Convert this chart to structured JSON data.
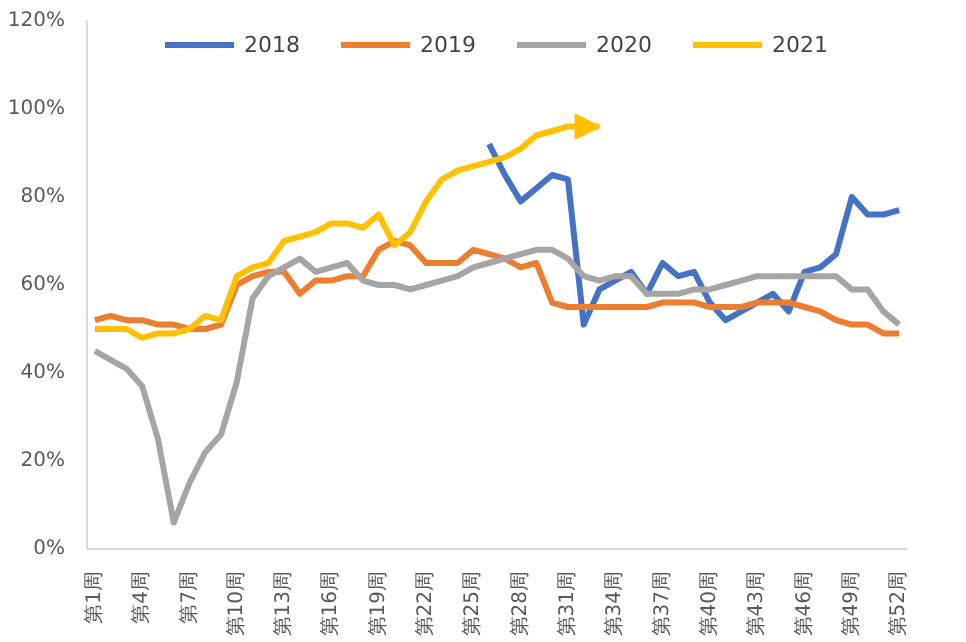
{
  "chart_data": {
    "type": "line",
    "categories": [
      "第1周",
      null,
      null,
      "第4周",
      null,
      null,
      "第7周",
      null,
      null,
      "第10周",
      null,
      null,
      "第13周",
      null,
      null,
      "第16周",
      null,
      null,
      "第19周",
      null,
      null,
      "第22周",
      null,
      null,
      "第25周",
      null,
      null,
      "第28周",
      null,
      null,
      "第31周",
      null,
      null,
      "第34周",
      null,
      null,
      "第37周",
      null,
      null,
      "第40周",
      null,
      null,
      "第43周",
      null,
      null,
      "第46周",
      null,
      null,
      "第49周",
      null,
      null,
      "第52周"
    ],
    "series": [
      {
        "name": "2018",
        "color": "#4472c4",
        "values": [
          null,
          null,
          null,
          null,
          null,
          null,
          null,
          null,
          null,
          null,
          null,
          null,
          null,
          null,
          null,
          null,
          null,
          null,
          null,
          null,
          null,
          null,
          null,
          null,
          null,
          92,
          85,
          79,
          82,
          85,
          84,
          51,
          59,
          61,
          63,
          58,
          65,
          62,
          63,
          56,
          52,
          54,
          56,
          58,
          54,
          63,
          64,
          67,
          80,
          76,
          76,
          77
        ]
      },
      {
        "name": "2019",
        "color": "#ed7d31",
        "values": [
          52,
          53,
          52,
          52,
          51,
          51,
          50,
          50,
          51,
          60,
          62,
          63,
          63,
          58,
          61,
          61,
          62,
          62,
          68,
          70,
          69,
          65,
          65,
          65,
          68,
          67,
          66,
          64,
          65,
          56,
          55,
          55,
          55,
          55,
          55,
          55,
          56,
          56,
          56,
          55,
          55,
          55,
          56,
          56,
          56,
          55,
          54,
          52,
          51,
          51,
          49,
          49
        ]
      },
      {
        "name": "2020",
        "color": "#a5a5a5",
        "values": [
          45,
          43,
          41,
          37,
          25,
          6,
          15,
          22,
          26,
          38,
          57,
          62,
          64,
          66,
          63,
          64,
          65,
          61,
          60,
          60,
          59,
          60,
          61,
          62,
          64,
          65,
          66,
          67,
          68,
          68,
          66,
          62,
          61,
          62,
          62,
          58,
          58,
          58,
          59,
          59,
          60,
          61,
          62,
          62,
          62,
          62,
          62,
          62,
          59,
          59,
          54,
          51
        ]
      },
      {
        "name": "2021",
        "color": "#ffc000",
        "values": [
          50,
          50,
          50,
          48,
          49,
          49,
          50,
          53,
          52,
          62,
          64,
          65,
          70,
          71,
          72,
          74,
          74,
          73,
          76,
          69,
          72,
          79,
          84,
          86,
          87,
          88,
          89,
          91,
          94,
          95,
          96,
          96,
          96,
          null,
          null,
          null,
          null,
          null,
          null,
          null,
          null,
          null,
          null,
          null,
          null,
          null,
          null,
          null,
          null,
          null,
          null,
          null
        ]
      }
    ],
    "ylim": [
      0,
      120
    ],
    "yticks": [
      {
        "value": 0,
        "label": "0%"
      },
      {
        "value": 20,
        "label": "20%"
      },
      {
        "value": 40,
        "label": "40%"
      },
      {
        "value": 60,
        "label": "60%"
      },
      {
        "value": 80,
        "label": "80%"
      },
      {
        "value": 100,
        "label": "100%"
      },
      {
        "value": 120,
        "label": "120%"
      }
    ],
    "grid": false,
    "legend": "top",
    "marker": "none",
    "line_style": "solid"
  }
}
